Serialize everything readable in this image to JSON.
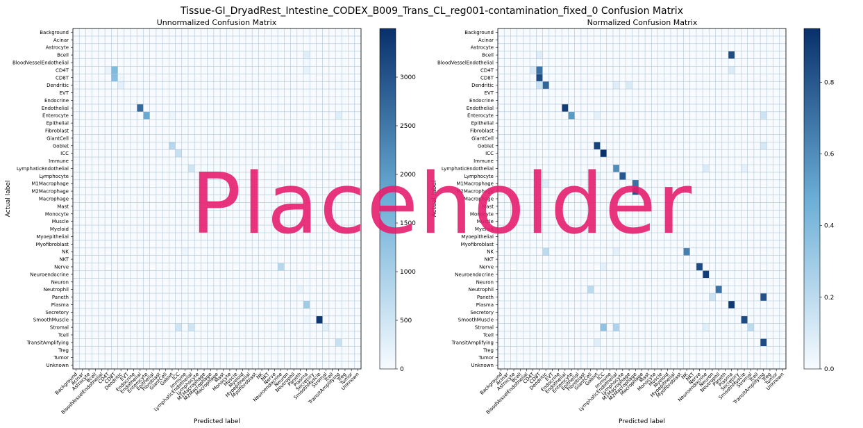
{
  "figure": {
    "title": "Tissue-GI_DryadRest_Intestine_CODEX_B009_Trans_CL_reg001-contamination_fixed_0 Confusion Matrix",
    "watermark": "Placeholder"
  },
  "chart_data": [
    {
      "type": "heatmap",
      "title": "Unnormalized Confusion Matrix",
      "xlabel": "Predicted label",
      "ylabel": "Actual label",
      "colormap": "Blues",
      "colors": {
        "low": "#f7fbff",
        "high": "#08306b"
      },
      "categories": [
        "Background",
        "Acinar",
        "Astrocyte",
        "Bcell",
        "BloodVesselEndothelial",
        "CD4T",
        "CD8T",
        "Dendritic",
        "EVT",
        "Endocrine",
        "Endothelial",
        "Enterocyte",
        "Epithelial",
        "Fibroblast",
        "GiantCell",
        "Goblet",
        "ICC",
        "Immune",
        "LymphaticEndothelial",
        "Lymphocyte",
        "M1Macrophage",
        "M2Macrophage",
        "Macrophage",
        "Mast",
        "Monocyte",
        "Muscle",
        "Myeloid",
        "Myoepithelial",
        "Myofibroblast",
        "NK",
        "NKT",
        "Nerve",
        "Neuroendocrine",
        "Neuron",
        "Neutrophil",
        "Paneth",
        "Plasma",
        "Secretory",
        "SmoothMuscle",
        "Stromal",
        "Tcell",
        "TransitAmplifying",
        "Treg",
        "Tumor",
        "Unknown"
      ],
      "colorbar": {
        "vmin": 0,
        "vmax": 3500,
        "ticks": [
          0,
          500,
          1000,
          1500,
          2000,
          2500,
          3000
        ]
      },
      "cells": [
        {
          "row": 3,
          "col": 36,
          "value": 300
        },
        {
          "row": 4,
          "col": 36,
          "value": 60
        },
        {
          "row": 5,
          "col": 5,
          "value": 150
        },
        {
          "row": 5,
          "col": 6,
          "value": 1500
        },
        {
          "row": 5,
          "col": 36,
          "value": 200
        },
        {
          "row": 6,
          "col": 6,
          "value": 1400
        },
        {
          "row": 6,
          "col": 7,
          "value": 100
        },
        {
          "row": 7,
          "col": 7,
          "value": 250
        },
        {
          "row": 10,
          "col": 10,
          "value": 2700
        },
        {
          "row": 11,
          "col": 11,
          "value": 1800
        },
        {
          "row": 11,
          "col": 15,
          "value": 120
        },
        {
          "row": 11,
          "col": 41,
          "value": 300
        },
        {
          "row": 15,
          "col": 15,
          "value": 800
        },
        {
          "row": 15,
          "col": 41,
          "value": 120
        },
        {
          "row": 16,
          "col": 16,
          "value": 600
        },
        {
          "row": 18,
          "col": 18,
          "value": 500
        },
        {
          "row": 18,
          "col": 32,
          "value": 100
        },
        {
          "row": 29,
          "col": 17,
          "value": 120
        },
        {
          "row": 31,
          "col": 32,
          "value": 800
        },
        {
          "row": 34,
          "col": 35,
          "value": 150
        },
        {
          "row": 36,
          "col": 36,
          "value": 1100
        },
        {
          "row": 38,
          "col": 36,
          "value": 100
        },
        {
          "row": 38,
          "col": 38,
          "value": 3400
        },
        {
          "row": 38,
          "col": 32,
          "value": 80
        },
        {
          "row": 39,
          "col": 16,
          "value": 500
        },
        {
          "row": 39,
          "col": 18,
          "value": 500
        },
        {
          "row": 39,
          "col": 32,
          "value": 120
        },
        {
          "row": 39,
          "col": 39,
          "value": 250
        },
        {
          "row": 41,
          "col": 41,
          "value": 600
        }
      ]
    },
    {
      "type": "heatmap",
      "title": "Normalized Confusion Matrix",
      "xlabel": "Predicted label",
      "ylabel": "Actual label",
      "colormap": "Blues",
      "colors": {
        "low": "#f7fbff",
        "high": "#08306b"
      },
      "categories": [
        "Background",
        "Acinar",
        "Astrocyte",
        "Bcell",
        "BloodVesselEndothelial",
        "CD4T",
        "CD8T",
        "Dendritic",
        "EVT",
        "Endocrine",
        "Endothelial",
        "Enterocyte",
        "Epithelial",
        "Fibroblast",
        "GiantCell",
        "Goblet",
        "ICC",
        "Immune",
        "LymphaticEndothelial",
        "Lymphocyte",
        "M1Macrophage",
        "M2Macrophage",
        "Macrophage",
        "Mast",
        "Monocyte",
        "Muscle",
        "Myeloid",
        "Myoepithelial",
        "Myofibroblast",
        "NK",
        "NKT",
        "Nerve",
        "Neuroendocrine",
        "Neuron",
        "Neutrophil",
        "Paneth",
        "Plasma",
        "Secretory",
        "SmoothMuscle",
        "Stromal",
        "Tcell",
        "TransitAmplifying",
        "Treg",
        "Tumor",
        "Unknown"
      ],
      "colorbar": {
        "vmin": 0,
        "vmax": 0.95,
        "ticks": [
          0.0,
          0.2,
          0.4,
          0.6,
          0.8
        ]
      },
      "cells": [
        {
          "row": 3,
          "col": 6,
          "value": 0.08
        },
        {
          "row": 3,
          "col": 36,
          "value": 0.85
        },
        {
          "row": 5,
          "col": 5,
          "value": 0.1
        },
        {
          "row": 5,
          "col": 6,
          "value": 0.7
        },
        {
          "row": 5,
          "col": 36,
          "value": 0.1
        },
        {
          "row": 6,
          "col": 6,
          "value": 0.85
        },
        {
          "row": 7,
          "col": 6,
          "value": 0.15
        },
        {
          "row": 7,
          "col": 7,
          "value": 0.75
        },
        {
          "row": 7,
          "col": 18,
          "value": 0.08
        },
        {
          "row": 7,
          "col": 20,
          "value": 0.1
        },
        {
          "row": 10,
          "col": 10,
          "value": 0.9
        },
        {
          "row": 11,
          "col": 11,
          "value": 0.55
        },
        {
          "row": 11,
          "col": 15,
          "value": 0.06
        },
        {
          "row": 11,
          "col": 41,
          "value": 0.15
        },
        {
          "row": 15,
          "col": 15,
          "value": 0.88
        },
        {
          "row": 15,
          "col": 41,
          "value": 0.12
        },
        {
          "row": 16,
          "col": 16,
          "value": 0.95
        },
        {
          "row": 18,
          "col": 18,
          "value": 0.6
        },
        {
          "row": 18,
          "col": 32,
          "value": 0.1
        },
        {
          "row": 18,
          "col": 38,
          "value": 0.06
        },
        {
          "row": 19,
          "col": 15,
          "value": 0.06
        },
        {
          "row": 19,
          "col": 19,
          "value": 0.8
        },
        {
          "row": 20,
          "col": 7,
          "value": 0.08
        },
        {
          "row": 20,
          "col": 21,
          "value": 0.7
        },
        {
          "row": 21,
          "col": 21,
          "value": 0.8
        },
        {
          "row": 29,
          "col": 7,
          "value": 0.2
        },
        {
          "row": 29,
          "col": 18,
          "value": 0.06
        },
        {
          "row": 29,
          "col": 29,
          "value": 0.65
        },
        {
          "row": 31,
          "col": 16,
          "value": 0.06
        },
        {
          "row": 31,
          "col": 31,
          "value": 0.85
        },
        {
          "row": 32,
          "col": 32,
          "value": 0.9
        },
        {
          "row": 34,
          "col": 14,
          "value": 0.2
        },
        {
          "row": 34,
          "col": 34,
          "value": 0.7
        },
        {
          "row": 35,
          "col": 33,
          "value": 0.15
        },
        {
          "row": 35,
          "col": 41,
          "value": 0.82
        },
        {
          "row": 36,
          "col": 36,
          "value": 0.92
        },
        {
          "row": 38,
          "col": 38,
          "value": 0.85
        },
        {
          "row": 39,
          "col": 16,
          "value": 0.35
        },
        {
          "row": 39,
          "col": 18,
          "value": 0.25
        },
        {
          "row": 39,
          "col": 32,
          "value": 0.08
        },
        {
          "row": 39,
          "col": 39,
          "value": 0.2
        },
        {
          "row": 41,
          "col": 15,
          "value": 0.08
        },
        {
          "row": 41,
          "col": 41,
          "value": 0.85
        }
      ]
    }
  ]
}
